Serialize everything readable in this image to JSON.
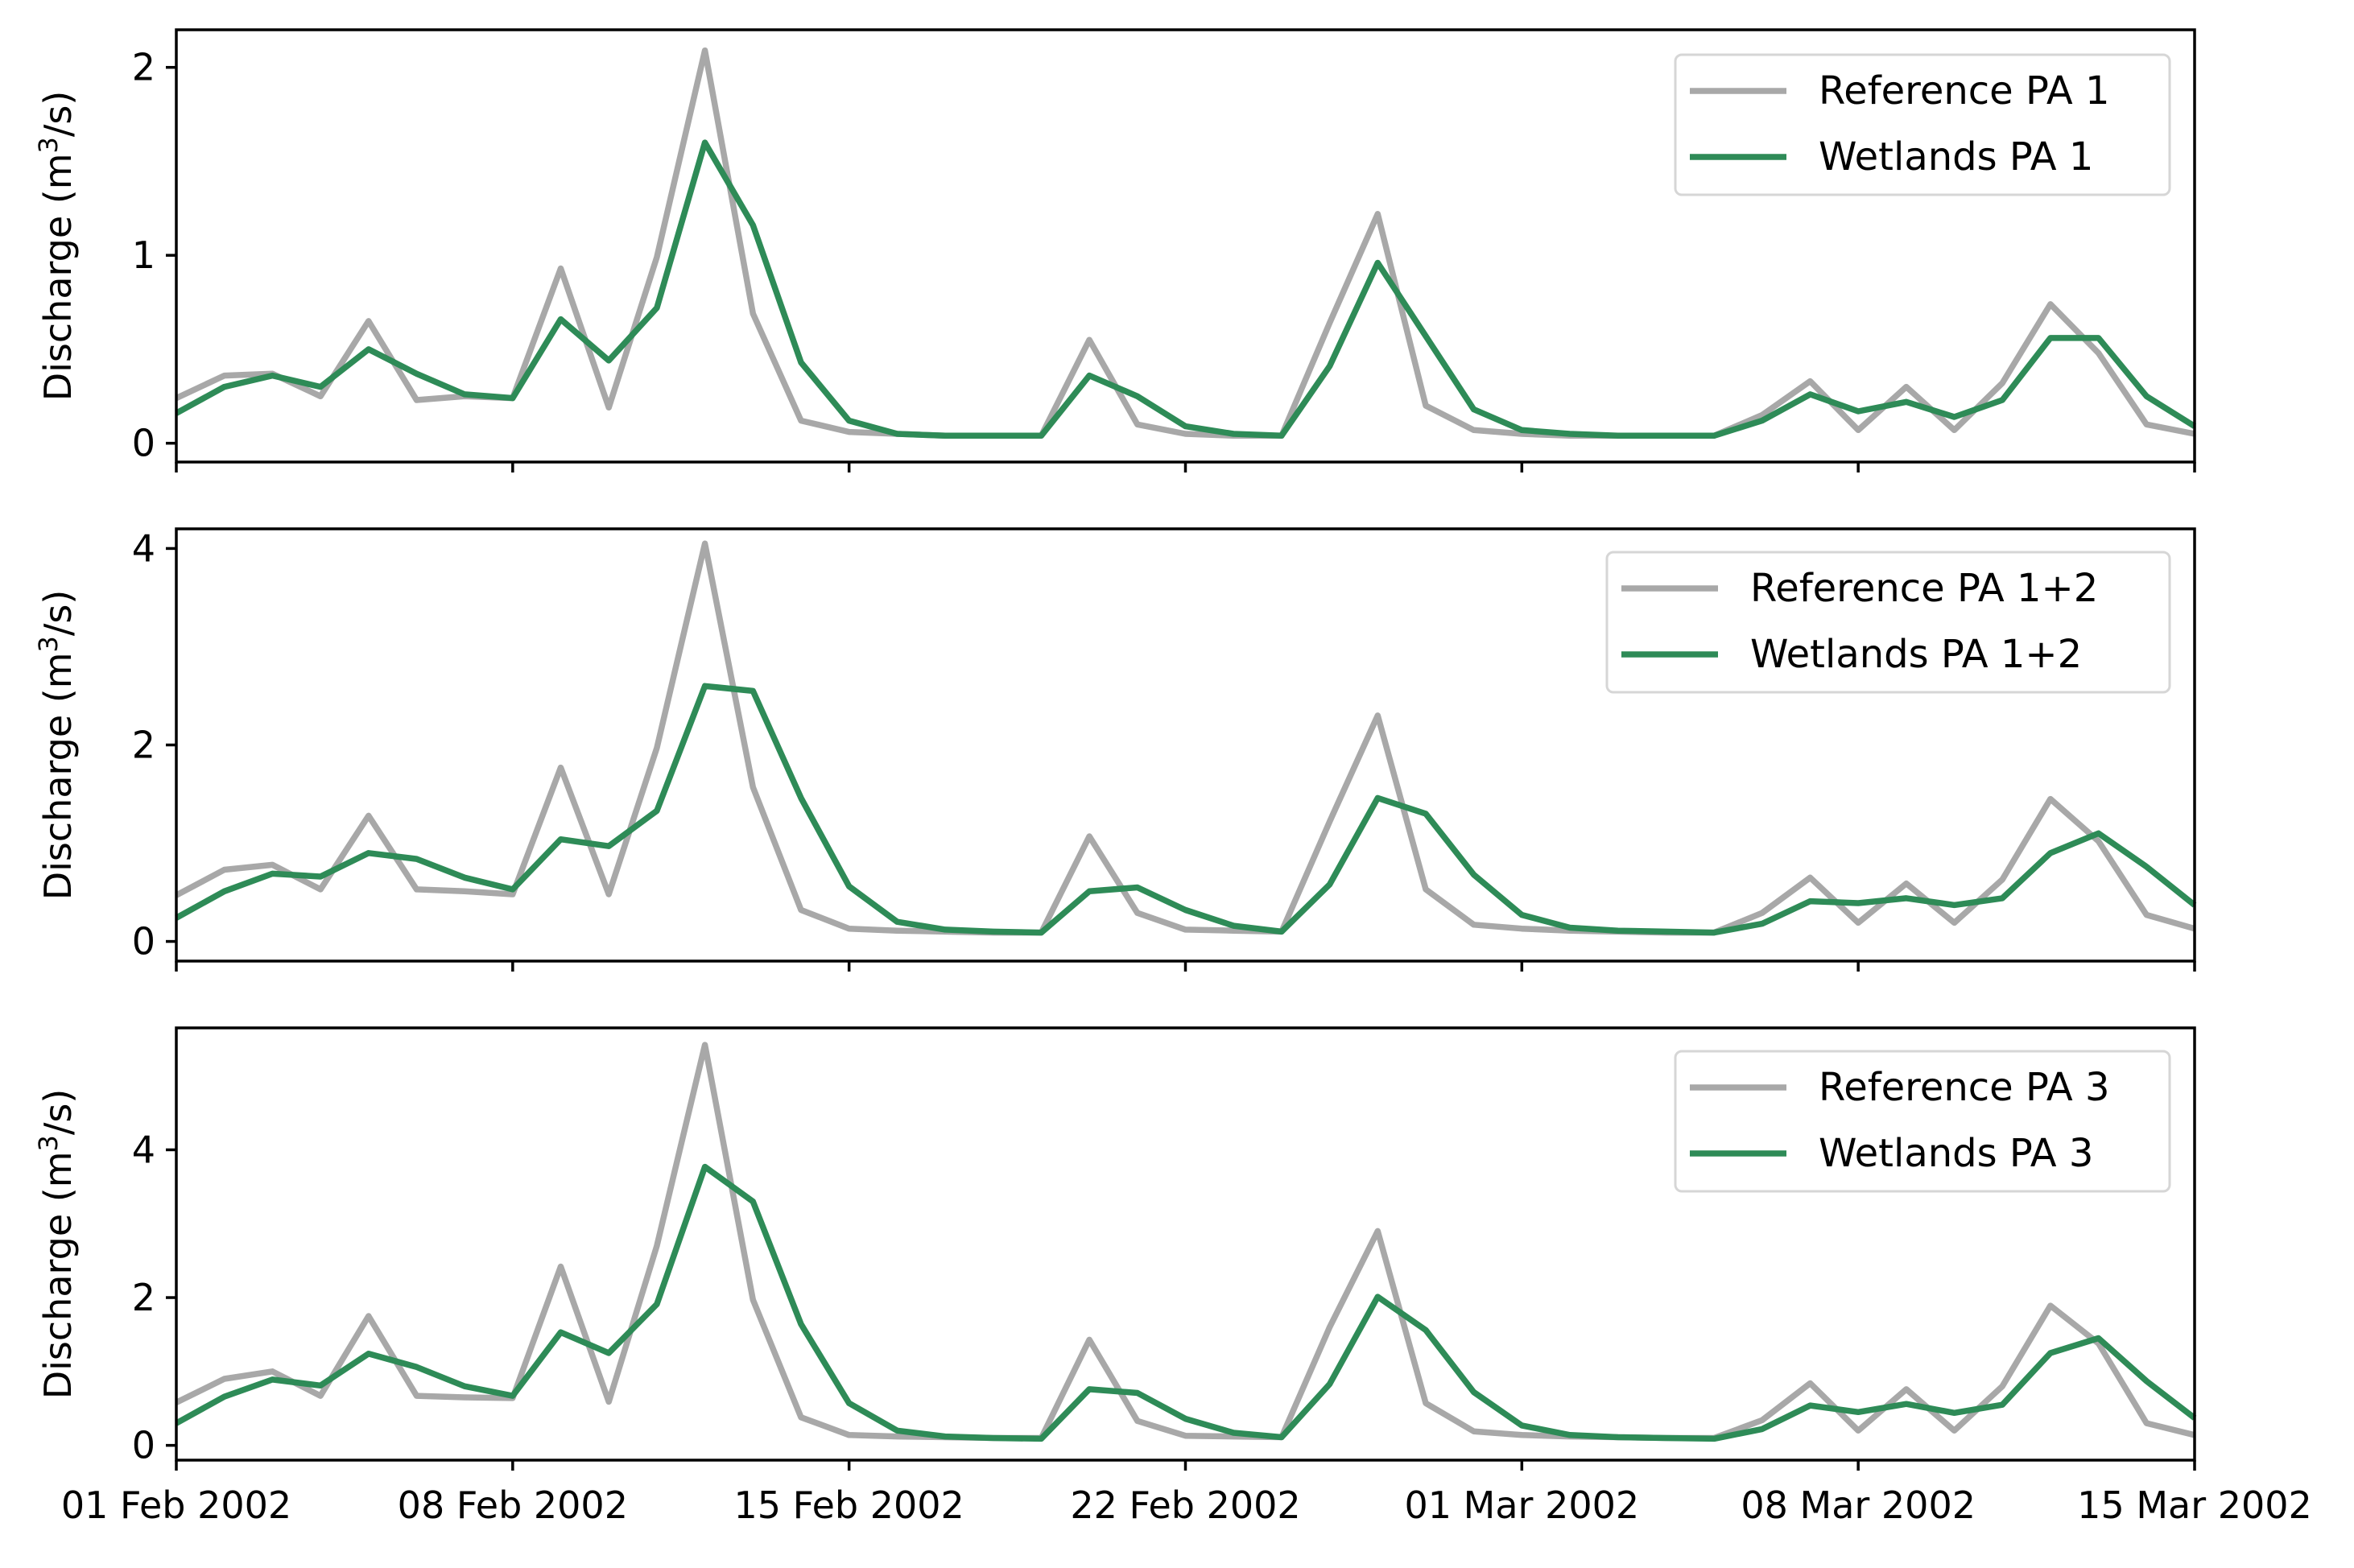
{
  "chart_data": [
    {
      "type": "line",
      "ylabel": "Discharge (m3/s)",
      "ylabel_main": "Discharge (m",
      "ylabel_sup": "3",
      "ylabel_end": "/s)",
      "ylim": [
        -0.1,
        2.2
      ],
      "yticks": [
        0,
        1,
        2
      ],
      "legend_position": "top-right",
      "series": [
        {
          "name": "Reference PA 1",
          "color": "#a8a8a8",
          "values": [
            0.24,
            0.36,
            0.37,
            0.25,
            0.65,
            0.23,
            0.25,
            0.24,
            0.93,
            0.19,
            0.99,
            2.09,
            0.69,
            0.12,
            0.06,
            0.05,
            0.04,
            0.04,
            0.04,
            0.55,
            0.1,
            0.05,
            0.04,
            0.04,
            0.64,
            1.22,
            0.2,
            0.07,
            0.05,
            0.04,
            0.04,
            0.04,
            0.04,
            0.15,
            0.33,
            0.07,
            0.3,
            0.07,
            0.32,
            0.74,
            0.48,
            0.1,
            0.05
          ]
        },
        {
          "name": "Wetlands PA 1",
          "color": "#2e8b57",
          "values": [
            0.16,
            0.3,
            0.36,
            0.3,
            0.5,
            0.37,
            0.26,
            0.24,
            0.66,
            0.44,
            0.72,
            1.6,
            1.16,
            0.43,
            0.12,
            0.05,
            0.04,
            0.04,
            0.04,
            0.36,
            0.25,
            0.09,
            0.05,
            0.04,
            0.41,
            0.96,
            0.57,
            0.18,
            0.07,
            0.05,
            0.04,
            0.04,
            0.04,
            0.12,
            0.26,
            0.17,
            0.22,
            0.14,
            0.23,
            0.56,
            0.56,
            0.25,
            0.09
          ]
        }
      ]
    },
    {
      "type": "line",
      "ylabel": "Discharge (m3/s)",
      "ylabel_main": "Discharge (m",
      "ylabel_sup": "3",
      "ylabel_end": "/s)",
      "ylim": [
        -0.2,
        4.2
      ],
      "yticks": [
        0,
        2,
        4
      ],
      "legend_position": "top-right",
      "series": [
        {
          "name": "Reference PA 1+2",
          "color": "#a8a8a8",
          "values": [
            0.47,
            0.73,
            0.78,
            0.53,
            1.28,
            0.53,
            0.51,
            0.48,
            1.77,
            0.48,
            1.97,
            4.05,
            1.57,
            0.32,
            0.13,
            0.11,
            0.1,
            0.09,
            0.09,
            1.07,
            0.29,
            0.12,
            0.11,
            0.1,
            1.22,
            2.3,
            0.53,
            0.17,
            0.13,
            0.11,
            0.1,
            0.09,
            0.09,
            0.29,
            0.65,
            0.19,
            0.59,
            0.19,
            0.63,
            1.45,
            1.02,
            0.27,
            0.13
          ]
        },
        {
          "name": "Wetlands PA 1+2",
          "color": "#2e8b57",
          "values": [
            0.24,
            0.51,
            0.69,
            0.66,
            0.9,
            0.84,
            0.65,
            0.53,
            1.04,
            0.97,
            1.33,
            2.6,
            2.55,
            1.46,
            0.56,
            0.2,
            0.12,
            0.1,
            0.09,
            0.51,
            0.55,
            0.32,
            0.16,
            0.1,
            0.58,
            1.46,
            1.3,
            0.68,
            0.27,
            0.14,
            0.11,
            0.1,
            0.09,
            0.18,
            0.41,
            0.39,
            0.44,
            0.37,
            0.44,
            0.9,
            1.1,
            0.76,
            0.37
          ]
        }
      ]
    },
    {
      "type": "line",
      "ylabel": "Discharge (m3/s)",
      "ylabel_main": "Discharge (m",
      "ylabel_sup": "3",
      "ylabel_end": "/s)",
      "ylim": [
        -0.2,
        5.65
      ],
      "yticks": [
        0,
        2,
        4
      ],
      "legend_position": "top-right",
      "series": [
        {
          "name": "Reference PA 3",
          "color": "#a8a8a8",
          "values": [
            0.58,
            0.9,
            1.0,
            0.67,
            1.75,
            0.67,
            0.65,
            0.64,
            2.42,
            0.59,
            2.7,
            5.42,
            1.97,
            0.38,
            0.14,
            0.12,
            0.11,
            0.1,
            0.1,
            1.43,
            0.33,
            0.13,
            0.12,
            0.11,
            1.6,
            2.9,
            0.57,
            0.19,
            0.14,
            0.12,
            0.11,
            0.1,
            0.1,
            0.34,
            0.84,
            0.2,
            0.76,
            0.2,
            0.8,
            1.89,
            1.38,
            0.3,
            0.14
          ]
        },
        {
          "name": "Wetlands PA 3",
          "color": "#2e8b57",
          "values": [
            0.3,
            0.66,
            0.89,
            0.81,
            1.24,
            1.06,
            0.8,
            0.67,
            1.53,
            1.25,
            1.91,
            3.77,
            3.3,
            1.64,
            0.57,
            0.2,
            0.12,
            0.1,
            0.09,
            0.76,
            0.71,
            0.36,
            0.17,
            0.11,
            0.83,
            2.01,
            1.56,
            0.72,
            0.27,
            0.14,
            0.11,
            0.1,
            0.09,
            0.22,
            0.54,
            0.45,
            0.56,
            0.44,
            0.55,
            1.25,
            1.45,
            0.87,
            0.37
          ]
        }
      ]
    }
  ],
  "x_axis": {
    "start_index": 0,
    "end_index": 42,
    "tick_indices": [
      0,
      7,
      14,
      21,
      28,
      35,
      42
    ],
    "tick_labels": [
      "01 Feb 2002",
      "08 Feb 2002",
      "15 Feb 2002",
      "22 Feb 2002",
      "01 Mar 2002",
      "08 Mar 2002",
      "15 Mar 2002"
    ]
  }
}
